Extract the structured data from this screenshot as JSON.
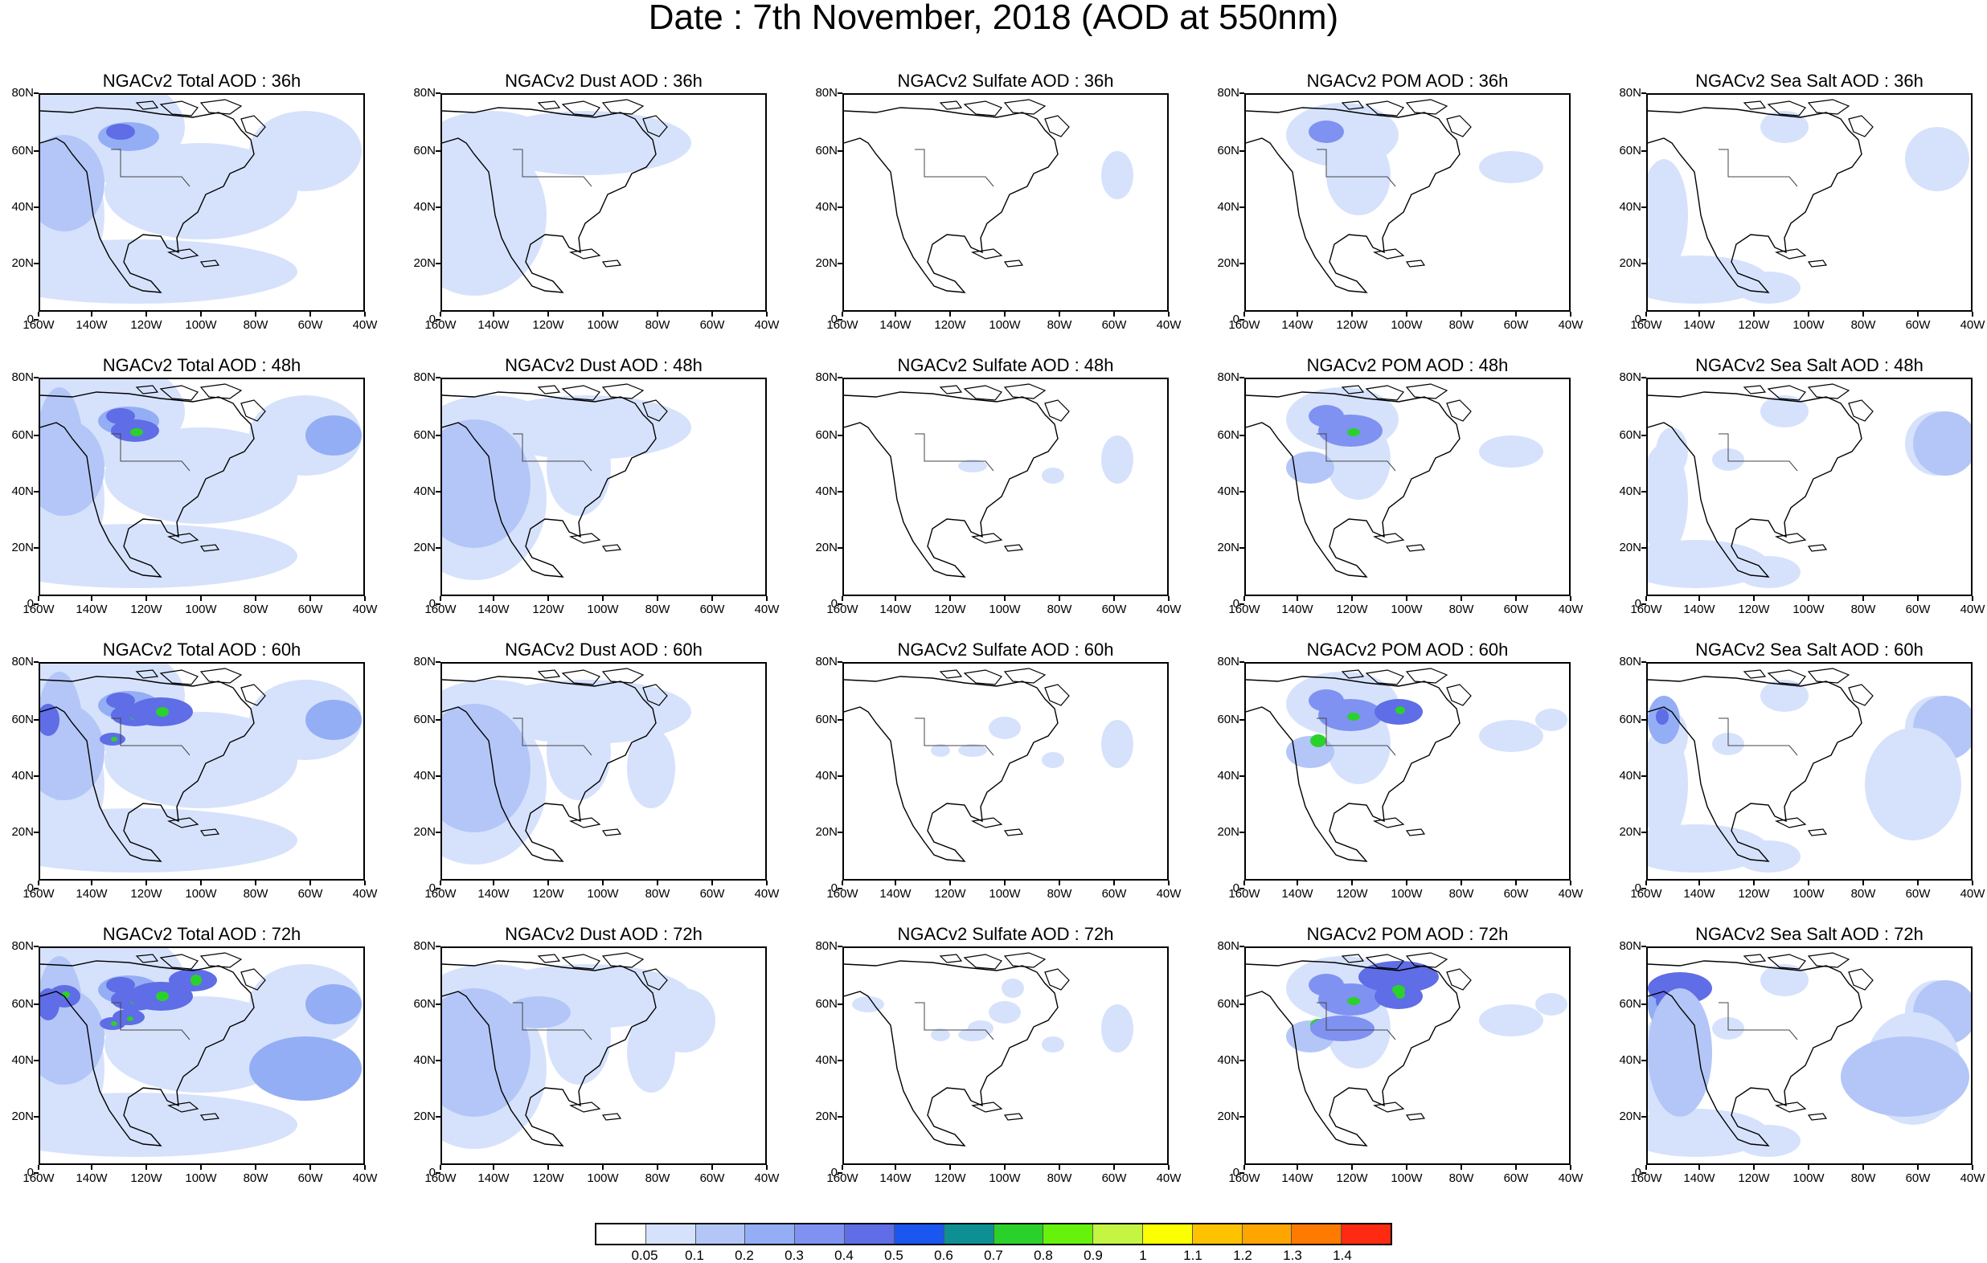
{
  "title": "Date : 7th November, 2018 (AOD at 550nm)",
  "panels": [
    {
      "title": "NGACv2 Total AOD : 36h",
      "species": "total",
      "lead": 36
    },
    {
      "title": "NGACv2 Dust AOD : 36h",
      "species": "dust",
      "lead": 36
    },
    {
      "title": "NGACv2 Sulfate AOD : 36h",
      "species": "sulfate",
      "lead": 36
    },
    {
      "title": "NGACv2 POM AOD : 36h",
      "species": "pom",
      "lead": 36
    },
    {
      "title": "NGACv2 Sea Salt AOD : 36h",
      "species": "seasalt",
      "lead": 36
    },
    {
      "title": "NGACv2 Total AOD : 48h",
      "species": "total",
      "lead": 48
    },
    {
      "title": "NGACv2 Dust AOD : 48h",
      "species": "dust",
      "lead": 48
    },
    {
      "title": "NGACv2 Sulfate AOD : 48h",
      "species": "sulfate",
      "lead": 48
    },
    {
      "title": "NGACv2 POM AOD : 48h",
      "species": "pom",
      "lead": 48
    },
    {
      "title": "NGACv2 Sea Salt AOD : 48h",
      "species": "seasalt",
      "lead": 48
    },
    {
      "title": "NGACv2 Total AOD : 60h",
      "species": "total",
      "lead": 60
    },
    {
      "title": "NGACv2 Dust AOD : 60h",
      "species": "dust",
      "lead": 60
    },
    {
      "title": "NGACv2 Sulfate AOD : 60h",
      "species": "sulfate",
      "lead": 60
    },
    {
      "title": "NGACv2 POM AOD : 60h",
      "species": "pom",
      "lead": 60
    },
    {
      "title": "NGACv2 Sea Salt AOD : 60h",
      "species": "seasalt",
      "lead": 60
    },
    {
      "title": "NGACv2 Total AOD : 72h",
      "species": "total",
      "lead": 72
    },
    {
      "title": "NGACv2 Dust AOD : 72h",
      "species": "dust",
      "lead": 72
    },
    {
      "title": "NGACv2 Sulfate AOD : 72h",
      "species": "sulfate",
      "lead": 72
    },
    {
      "title": "NGACv2 POM AOD : 72h",
      "species": "pom",
      "lead": 72
    },
    {
      "title": "NGACv2 Sea Salt  AOD : 72h",
      "species": "seasalt",
      "lead": 72
    }
  ],
  "axes": {
    "lon_labels": [
      "160W",
      "140W",
      "120W",
      "100W",
      "80W",
      "60W",
      "40W"
    ],
    "lat_labels": [
      "80N",
      "60N",
      "40N",
      "20N",
      "0"
    ],
    "lon_range": [
      -160,
      -40
    ],
    "lat_range": [
      0,
      80
    ]
  },
  "colorbar": {
    "colors": [
      "#ffffff",
      "#d6e2fc",
      "#b3c6f7",
      "#94aef5",
      "#7f92f2",
      "#5f6de6",
      "#1a56f0",
      "#0d8f94",
      "#2bd12b",
      "#66f20a",
      "#c4f542",
      "#fbff00",
      "#ffc200",
      "#ffa500",
      "#ff7a00",
      "#ff2a12"
    ],
    "labels": [
      "0.05",
      "0.1",
      "0.2",
      "0.3",
      "0.4",
      "0.5",
      "0.6",
      "0.7",
      "0.8",
      "0.9",
      "1",
      "1.1",
      "1.2",
      "1.3",
      "1.4"
    ]
  }
}
